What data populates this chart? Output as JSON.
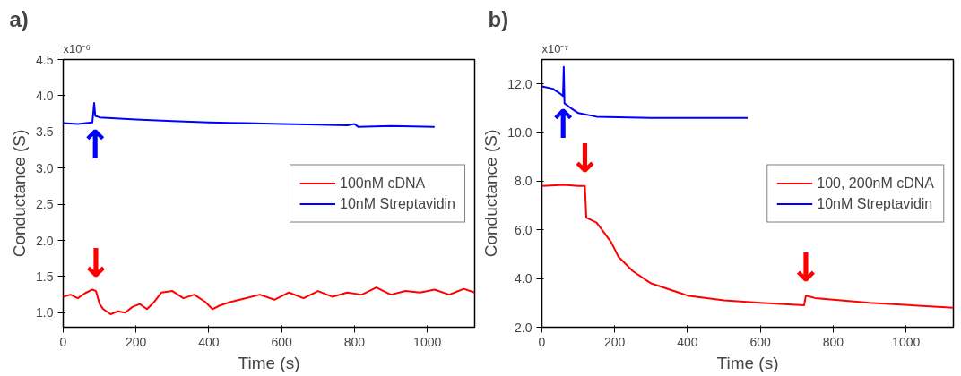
{
  "chart_data": [
    {
      "type": "line",
      "title": "a)",
      "xlabel": "Time (s)",
      "ylabel": "Conductance (S)",
      "xlim": [
        0,
        1130
      ],
      "xticks": [
        0,
        200,
        400,
        600,
        800,
        1000
      ],
      "ylim": [
        0.8,
        4.5
      ],
      "yticks": [
        {
          "value": 1.0,
          "label": "1.0"
        },
        {
          "value": 1.5,
          "label": "1.5"
        },
        {
          "value": 2.0,
          "label": "2.0"
        },
        {
          "value": 2.5,
          "label": "2.5"
        },
        {
          "value": 3.0,
          "label": "3.0"
        },
        {
          "value": 3.5,
          "label": "3.5"
        },
        {
          "value": 4.0,
          "label": "4.0"
        },
        {
          "value": 4.5,
          "label": "4.5"
        }
      ],
      "grid": false,
      "legend": "right",
      "line_style": "solid",
      "marker": "none",
      "annotations": [
        "x10⁻⁶",
        {
          "text": "↑",
          "x": 88,
          "y": 3.72
        },
        {
          "text": "↓",
          "x": 90,
          "y": 1.3
        }
      ],
      "series": [
        {
          "name": "100nM cDNA",
          "color": "#ff0000",
          "x": [
            0,
            20,
            40,
            60,
            80,
            90,
            100,
            110,
            130,
            150,
            170,
            190,
            210,
            230,
            250,
            270,
            300,
            330,
            360,
            390,
            410,
            430,
            460,
            500,
            540,
            580,
            620,
            660,
            700,
            740,
            780,
            820,
            860,
            900,
            940,
            980,
            1020,
            1060,
            1100,
            1130
          ],
          "values": [
            1.22,
            1.25,
            1.2,
            1.27,
            1.32,
            1.3,
            1.12,
            1.05,
            0.98,
            1.02,
            1.0,
            1.08,
            1.12,
            1.05,
            1.15,
            1.28,
            1.3,
            1.2,
            1.25,
            1.15,
            1.05,
            1.1,
            1.15,
            1.2,
            1.25,
            1.18,
            1.28,
            1.2,
            1.3,
            1.22,
            1.28,
            1.25,
            1.35,
            1.25,
            1.3,
            1.28,
            1.32,
            1.25,
            1.33,
            1.28
          ]
        },
        {
          "name": "10nM Streptavidin",
          "color": "#0000ff",
          "x": [
            0,
            40,
            80,
            85,
            88,
            100,
            200,
            300,
            400,
            500,
            600,
            700,
            780,
            800,
            810,
            900,
            1020
          ],
          "values": [
            3.62,
            3.61,
            3.63,
            3.9,
            3.72,
            3.7,
            3.67,
            3.65,
            3.63,
            3.62,
            3.61,
            3.6,
            3.59,
            3.61,
            3.57,
            3.58,
            3.57
          ]
        }
      ]
    },
    {
      "type": "line",
      "title": "b)",
      "xlabel": "Time (s)",
      "ylabel": "Conductance (S)",
      "xlim": [
        0,
        1130
      ],
      "xticks": [
        0,
        200,
        400,
        600,
        800,
        1000
      ],
      "ylim": [
        2.0,
        13.0
      ],
      "yticks": [
        {
          "value": 2.0,
          "label": "2.0"
        },
        {
          "value": 4.0,
          "label": "4.0"
        },
        {
          "value": 6.0,
          "label": "6.0"
        },
        {
          "value": 8.0,
          "label": "8.0"
        },
        {
          "value": 10.0,
          "label": "10.0"
        },
        {
          "value": 12.0,
          "label": "12.0"
        }
      ],
      "grid": false,
      "legend": "right",
      "line_style": "solid",
      "marker": "none",
      "annotations": [
        "x10⁻⁷",
        {
          "text": "↑",
          "x": 58,
          "y": 11.5
        },
        {
          "text": "↓",
          "x": 118,
          "y": 7.8
        },
        {
          "text": "↓",
          "x": 725,
          "y": 3.3
        }
      ],
      "series": [
        {
          "name": "100, 200nM cDNA",
          "color": "#ff0000",
          "x": [
            0,
            60,
            100,
            118,
            122,
            150,
            175,
            190,
            210,
            250,
            300,
            400,
            500,
            600,
            720,
            725,
            750,
            900,
            1130
          ],
          "values": [
            7.8,
            7.85,
            7.8,
            7.8,
            6.5,
            6.3,
            5.8,
            5.5,
            4.9,
            4.3,
            3.8,
            3.3,
            3.1,
            3.0,
            2.9,
            3.3,
            3.2,
            3.0,
            2.8
          ]
        },
        {
          "name": "10nM Streptavidin",
          "color": "#0000ff",
          "x": [
            0,
            30,
            50,
            58,
            60,
            62,
            80,
            100,
            150,
            300,
            565
          ],
          "values": [
            11.9,
            11.8,
            11.6,
            11.5,
            12.7,
            11.2,
            11.0,
            10.8,
            10.65,
            10.6,
            10.6
          ]
        }
      ]
    }
  ]
}
